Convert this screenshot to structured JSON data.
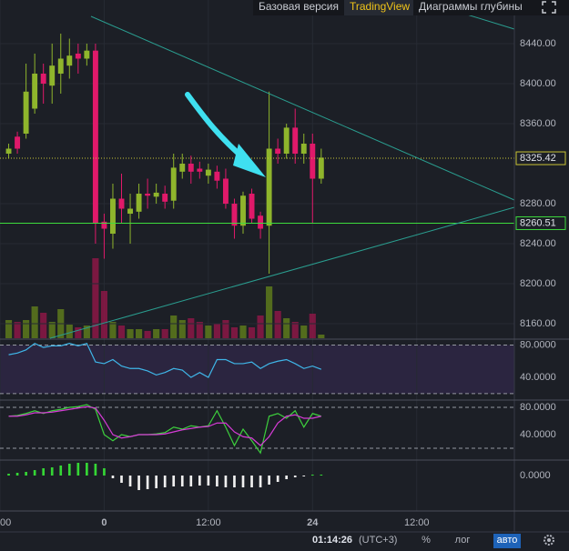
{
  "tabs": [
    "Базовая версия",
    "TradingView",
    "Диаграммы глубины"
  ],
  "active_tab": 1,
  "chart_data": [
    {
      "type": "candlestick",
      "x": [
        -11,
        -10,
        -9,
        -8,
        -7,
        -6,
        -5,
        -4,
        -3,
        -2,
        -1,
        0,
        1,
        2,
        3,
        4,
        5,
        6,
        7,
        8,
        9,
        10,
        11,
        12,
        13,
        14,
        15,
        16,
        17,
        18,
        19,
        20,
        21,
        22,
        23,
        24,
        25
      ],
      "open": [
        8330,
        8347,
        8350,
        8375,
        8410,
        8398,
        8410,
        8418,
        8430,
        8425,
        8433,
        8262,
        8250,
        8285,
        8270,
        8272,
        8290,
        8287,
        8290,
        8283,
        8312,
        8320,
        8315,
        8308,
        8312,
        8305,
        8280,
        8258,
        8290,
        8268,
        8258,
        8335,
        8330,
        8356,
        8330,
        8340,
        8305
      ],
      "high": [
        8340,
        8352,
        8420,
        8430,
        8420,
        8440,
        8450,
        8445,
        8440,
        8440,
        8440,
        8270,
        8300,
        8310,
        8290,
        8300,
        8305,
        8300,
        8298,
        8330,
        8330,
        8328,
        8322,
        8320,
        8318,
        8315,
        8285,
        8292,
        8295,
        8272,
        8392,
        8345,
        8360,
        8375,
        8350,
        8350,
        8335
      ],
      "low": [
        8325,
        8330,
        8345,
        8370,
        8380,
        8380,
        8390,
        8405,
        8410,
        8418,
        8240,
        8225,
        8235,
        8260,
        8240,
        8265,
        8275,
        8280,
        8275,
        8275,
        8305,
        8300,
        8305,
        8300,
        8295,
        8275,
        8245,
        8250,
        8260,
        8245,
        8210,
        8320,
        8325,
        8320,
        8320,
        8260,
        8300
      ],
      "close": [
        8335,
        8335,
        8392,
        8410,
        8400,
        8418,
        8425,
        8428,
        8425,
        8433,
        8260,
        8255,
        8285,
        8275,
        8275,
        8290,
        8288,
        8291,
        8282,
        8316,
        8320,
        8312,
        8312,
        8314,
        8303,
        8280,
        8258,
        8288,
        8265,
        8255,
        8335,
        8330,
        8356,
        8330,
        8340,
        8305,
        8326
      ],
      "up_color": "#8fb52c",
      "down_color": "#e0196a",
      "xlim": [
        -12,
        47.25
      ],
      "xticks": [
        {
          "value": -12,
          "label": "00"
        },
        0,
        {
          "value": 12,
          "label": "12:00"
        },
        24,
        {
          "value": 36,
          "label": "12:00"
        }
      ],
      "ylim": [
        8145.5,
        8483.6
      ],
      "yticks": [
        {
          "value": 8440,
          "label": "8440.00"
        },
        {
          "value": 8400,
          "label": "8400.00"
        },
        {
          "value": 8360,
          "label": "8360.00"
        },
        {
          "value": 8280,
          "label": "8280.00"
        },
        {
          "value": 8240,
          "label": "8240.00"
        },
        {
          "value": 8200,
          "label": "8200.00"
        },
        {
          "value": 8160,
          "label": "8160.00"
        }
      ],
      "grid": true,
      "price_lines": [
        {
          "value": 8325.42,
          "color": "#c9c436",
          "style": "dotted"
        },
        {
          "value": 8260.51,
          "color": "#3ddc3d",
          "style": "solid"
        }
      ]
    },
    {
      "type": "volume",
      "values": [
        20,
        18,
        20,
        35,
        28,
        18,
        32,
        15,
        12,
        14,
        88,
        52,
        18,
        14,
        10,
        10,
        8,
        10,
        10,
        25,
        20,
        22,
        18,
        14,
        16,
        20,
        12,
        14,
        12,
        25,
        57,
        30,
        22,
        18,
        14,
        27,
        4
      ],
      "ylim": [
        0,
        120
      ],
      "up_color": "#5d7a1c",
      "down_color": "#8c1746"
    },
    {
      "type": "line",
      "ylim": [
        12,
        85
      ],
      "yticks": [
        {
          "value": 80,
          "label": "80.0000"
        },
        {
          "value": 40,
          "label": "40.0000"
        }
      ],
      "levels": [
        80,
        20
      ],
      "background": "#2b2540",
      "series": [
        {
          "color": "#3fb6e8",
          "values": [
            68,
            70,
            74,
            82,
            77,
            79,
            79,
            82,
            79,
            82,
            59,
            57,
            62,
            54,
            51,
            51,
            48,
            43,
            46,
            51,
            49,
            40,
            46,
            40,
            62,
            62,
            57,
            57,
            59,
            51,
            57,
            60,
            62,
            57,
            51,
            54,
            50
          ]
        }
      ]
    },
    {
      "type": "line",
      "ylim": [
        4,
        88
      ],
      "yticks": [
        {
          "value": 80,
          "label": "80.0000"
        },
        {
          "value": 40,
          "label": "40.0000"
        }
      ],
      "levels": [
        80,
        20
      ],
      "series": [
        {
          "color": "#3dcf3d",
          "values": [
            67,
            68,
            71,
            75,
            71,
            75,
            77,
            80,
            81,
            84,
            77,
            40,
            31,
            40,
            37,
            40,
            40,
            41,
            43,
            51,
            48,
            53,
            51,
            53,
            75,
            51,
            24,
            48,
            31,
            13,
            67,
            71,
            64,
            75,
            51,
            71,
            67
          ]
        },
        {
          "color": "#d63bd6",
          "values": [
            67,
            67,
            69,
            72,
            72,
            73,
            75,
            77,
            79,
            81,
            79,
            61,
            40,
            35,
            37,
            40,
            40,
            40,
            41,
            44,
            47,
            49,
            51,
            52,
            57,
            57,
            44,
            37,
            35,
            24,
            37,
            57,
            67,
            69,
            64,
            64,
            67
          ]
        }
      ]
    },
    {
      "type": "histogram",
      "ylim": [
        -37,
        15
      ],
      "yticks": [
        {
          "value": 0,
          "label": "0.0000"
        }
      ],
      "pos_color": "#35d635",
      "neg_color": "#f0f0f0",
      "values": [
        2,
        3,
        4,
        6,
        8,
        9,
        11,
        13,
        14,
        14,
        13,
        8,
        -3,
        -8,
        -12,
        -16,
        -15,
        -14,
        -13,
        -12,
        -12,
        -12,
        -11,
        -11,
        -12,
        -13,
        -13,
        -13,
        -13,
        -13,
        -10,
        -7,
        -4,
        -2,
        -1,
        1,
        1
      ]
    }
  ],
  "status": {
    "time": "01:14:26",
    "timezone": "(UTC+3)",
    "buttons": [
      "%",
      "лог",
      "авто"
    ],
    "active_button": 2
  }
}
